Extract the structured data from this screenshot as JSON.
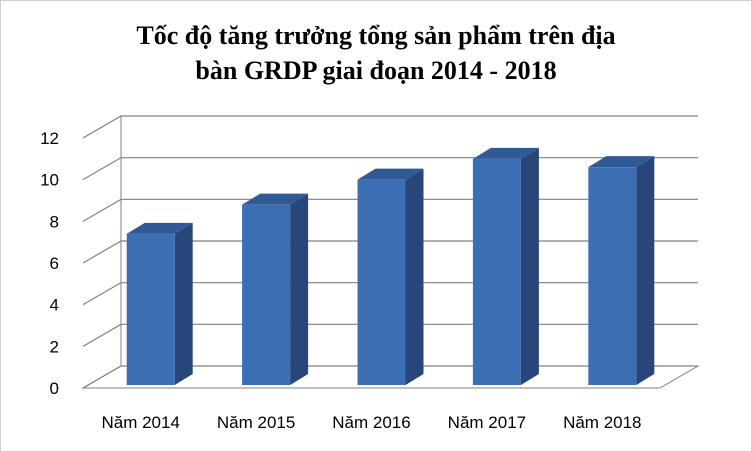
{
  "chart_data": {
    "type": "bar",
    "title_line1": "Tốc độ tăng trưởng tổng sản phẩm trên địa",
    "title_line2": "bàn GRDP giai đoạn 2014 - 2018",
    "categories": [
      "Năm 2014",
      "Năm 2015",
      "Năm 2016",
      "Năm 2017",
      "Năm 2018"
    ],
    "values": [
      7.4,
      8.8,
      10.0,
      11.0,
      10.6
    ],
    "yticks": [
      "0",
      "2",
      "4",
      "6",
      "8",
      "10",
      "12"
    ],
    "ylim": [
      0,
      12
    ],
    "grid": true,
    "bar_color": "#3C6EB4",
    "bar_side_color": "#28467A",
    "bar_top_color": "#2F5A96"
  }
}
